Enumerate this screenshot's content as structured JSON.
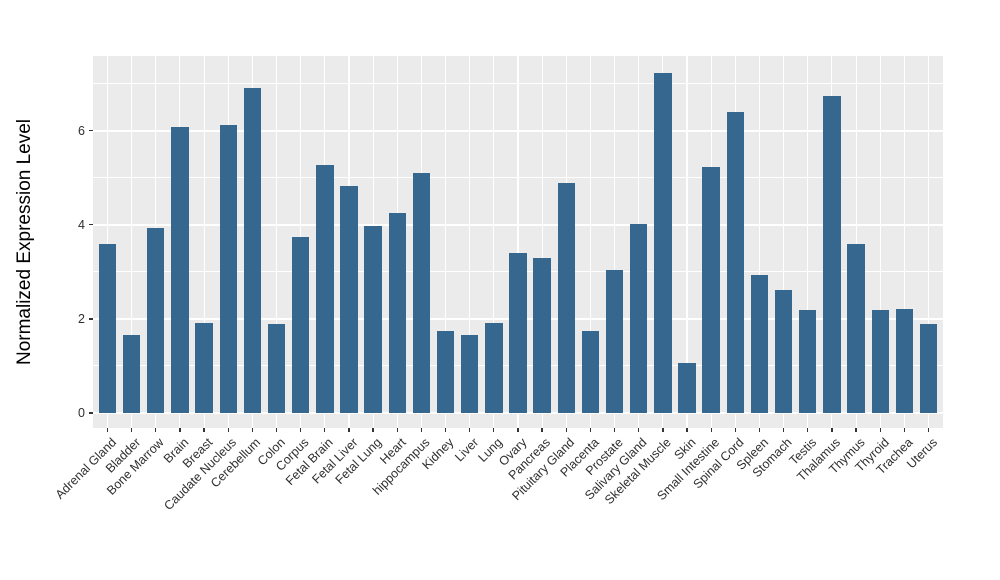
{
  "chart_data": {
    "type": "bar",
    "title": "",
    "xlabel": "",
    "ylabel": "Normalized Expression Level",
    "categories": [
      "Adrenal Gland",
      "Bladder",
      "Bone Marrow",
      "Brain",
      "Breast",
      "Caudate Nucleus",
      "Cerebellum",
      "Colon",
      "Corpus",
      "Fetal Brain",
      "Fetal Liver",
      "Fetal Lung",
      "Heart",
      "hippocampus",
      "Kidney",
      "Liver",
      "Lung",
      "Ovary",
      "Pancreas",
      "Pituitary Gland",
      "Placenta",
      "Prostate",
      "Salivary Gland",
      "Skeletal Muscle",
      "Skin",
      "Small Intestine",
      "Spinal Cord",
      "Spleen",
      "Stomach",
      "Testis",
      "Thalamus",
      "Thymus",
      "Thyroid",
      "Trachea",
      "Uterus"
    ],
    "values": [
      3.6,
      1.66,
      3.93,
      6.08,
      1.91,
      6.13,
      6.9,
      1.9,
      3.74,
      5.27,
      4.82,
      3.98,
      4.25,
      5.11,
      1.74,
      1.65,
      1.92,
      3.4,
      3.3,
      4.9,
      1.74,
      3.04,
      4.01,
      7.22,
      1.06,
      5.23,
      6.39,
      2.93,
      2.61,
      2.19,
      6.73,
      3.6,
      2.19,
      2.22,
      1.9
    ],
    "yticks": [
      0,
      2,
      4,
      6
    ],
    "yticks_minor": [
      1,
      3,
      5,
      7
    ],
    "ylim": [
      -0.32,
      7.59
    ],
    "grid": "on",
    "legend_position": "none",
    "bar_color": "#36678F",
    "panel_background": "#EBEBEB",
    "gridline_color": "#FFFFFF",
    "axis_text_color": "#2f2f2f",
    "axis_title_color": "#000000"
  }
}
